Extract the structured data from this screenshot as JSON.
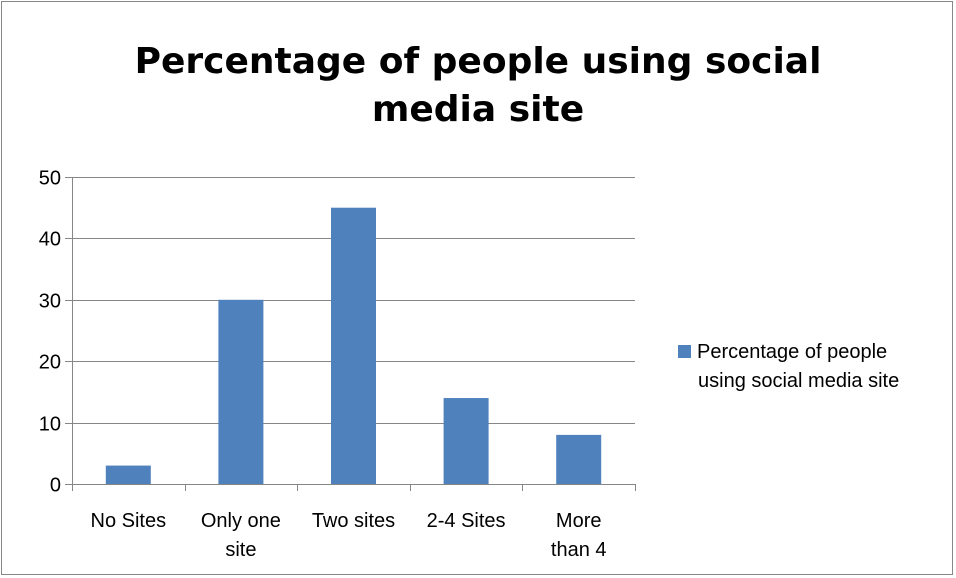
{
  "chart_data": {
    "type": "bar",
    "title_lines": [
      "Percentage of people using social",
      "media site"
    ],
    "categories": [
      {
        "label_lines": [
          "No Sites"
        ]
      },
      {
        "label_lines": [
          "Only one",
          "site"
        ]
      },
      {
        "label_lines": [
          "Two sites"
        ]
      },
      {
        "label_lines": [
          "2-4 Sites"
        ]
      },
      {
        "label_lines": [
          "More",
          "than 4"
        ]
      }
    ],
    "series": [
      {
        "name_lines": [
          "Percentage of people",
          "using social media site"
        ],
        "values": [
          3,
          30,
          45,
          14,
          8
        ]
      }
    ],
    "ylim": [
      0,
      50
    ],
    "yticks": [
      0,
      10,
      20,
      30,
      40,
      50
    ],
    "grid": true,
    "legend_position": "right",
    "bar_color": "#4f81bd",
    "grid_color": "#868686"
  }
}
